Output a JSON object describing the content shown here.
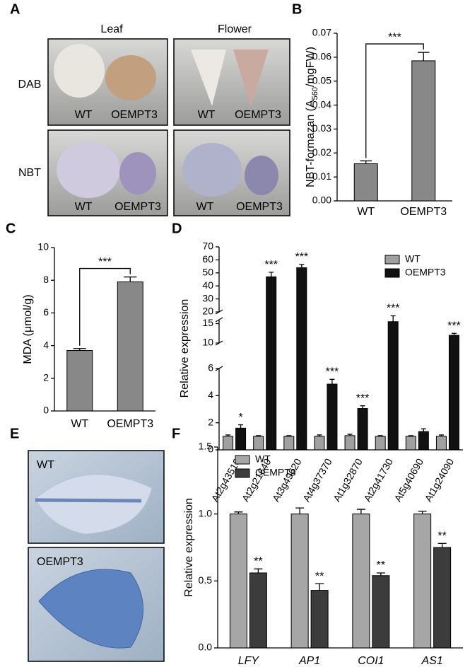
{
  "panel_labels": [
    "A",
    "B",
    "C",
    "D",
    "E",
    "F"
  ],
  "photos_a": {
    "columns": [
      "Leaf",
      "Flower"
    ],
    "rows": [
      "DAB",
      "NBT"
    ],
    "labels": [
      "WT",
      "OEMPT3"
    ]
  },
  "photos_e": {
    "labels": [
      "WT",
      "OEMPT3"
    ]
  },
  "chart_data": [
    {
      "type": "bar",
      "ylabel_parts": [
        "NBT-formazan (A",
        "560",
        "/mgFW)"
      ],
      "categories": [
        "WT",
        "OEMPT3"
      ],
      "values": [
        0.0155,
        0.0585
      ],
      "errors": [
        0.0012,
        0.0035
      ],
      "color": "#888888",
      "ylim": [
        0,
        0.07
      ],
      "yticks": [
        {
          "value": 0,
          "label": "0.00"
        },
        {
          "value": 0.01,
          "label": "0.01"
        },
        {
          "value": 0.02,
          "label": "0.02"
        },
        {
          "value": 0.03,
          "label": "0.03"
        },
        {
          "value": 0.04,
          "label": "0.04"
        },
        {
          "value": 0.05,
          "label": "0.05"
        },
        {
          "value": 0.06,
          "label": "0.06"
        },
        {
          "value": 0.07,
          "label": "0.07"
        }
      ],
      "significance": "***"
    },
    {
      "type": "bar",
      "ylabel": "MDA (μmol/g)",
      "categories": [
        "WT",
        "OEMPT3"
      ],
      "values": [
        3.7,
        7.9
      ],
      "errors": [
        0.12,
        0.3
      ],
      "color": "#888888",
      "ylim": [
        0,
        10
      ],
      "yticks": [
        0,
        2,
        4,
        6,
        8,
        10
      ],
      "significance": "***"
    },
    {
      "type": "bar",
      "ylabel": "Relative expression",
      "categories": [
        "At2g43510",
        "At2g21640",
        "At3g49620",
        "At4g37370",
        "At1g32870",
        "At2g41730",
        "At5g40690",
        "At1g24090"
      ],
      "series": [
        {
          "name": "WT",
          "color": "#a0a0a0",
          "values": [
            1.0,
            1.0,
            1.0,
            1.0,
            1.05,
            1.0,
            1.0,
            1.0
          ],
          "errors": [
            0.1,
            0.05,
            0.05,
            0.1,
            0.1,
            0.05,
            0.05,
            0.1
          ]
        },
        {
          "name": "OEMPT3",
          "color": "#111111",
          "values": [
            1.6,
            47,
            54,
            4.85,
            3.05,
            15.5,
            1.35,
            12
          ],
          "errors": [
            0.25,
            3.5,
            2.5,
            0.35,
            0.2,
            1.5,
            0.2,
            0.5
          ]
        }
      ],
      "y_segments": [
        {
          "ylim": [
            0,
            6
          ],
          "yticks": [
            0,
            2,
            4,
            6
          ]
        },
        {
          "ylim": [
            10,
            16
          ],
          "yticks": [
            10,
            15
          ]
        },
        {
          "ylim": [
            20,
            70
          ],
          "yticks": [
            20,
            30,
            40,
            50,
            60,
            70
          ]
        }
      ],
      "significance": [
        "*",
        "***",
        "***",
        "***",
        "***",
        "***",
        null,
        "***"
      ],
      "legend": "upper right"
    },
    {
      "type": "bar",
      "ylabel": "Relative expression",
      "categories": [
        "LFY",
        "AP1",
        "COI1",
        "AS1"
      ],
      "series": [
        {
          "name": "WT",
          "color": "#a6a6a6",
          "values": [
            1.0,
            1.0,
            1.0,
            1.0
          ],
          "errors": [
            0.015,
            0.045,
            0.035,
            0.02
          ]
        },
        {
          "name": "OEMPT3",
          "color": "#3c3c3c",
          "values": [
            0.56,
            0.43,
            0.54,
            0.75
          ],
          "errors": [
            0.03,
            0.05,
            0.02,
            0.03
          ]
        }
      ],
      "ylim": [
        0,
        1.5
      ],
      "yticks": [
        {
          "value": 0,
          "label": "0.0"
        },
        {
          "value": 0.5,
          "label": "0.5"
        },
        {
          "value": 1,
          "label": "1.0"
        },
        {
          "value": 1.5,
          "label": "1.5"
        }
      ],
      "significance": "**",
      "legend": "upper left"
    }
  ]
}
